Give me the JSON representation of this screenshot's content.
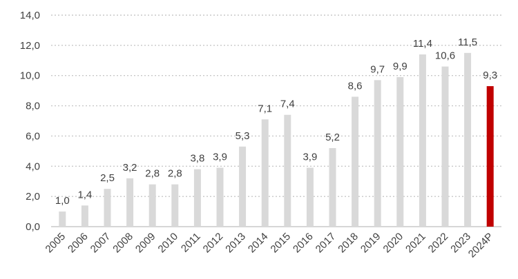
{
  "chart_data": {
    "type": "bar",
    "title": "",
    "xlabel": "",
    "ylabel": "",
    "categories": [
      "2005",
      "2006",
      "2007",
      "2008",
      "2009",
      "2010",
      "2011",
      "2012",
      "2013",
      "2014",
      "2015",
      "2016",
      "2017",
      "2018",
      "2019",
      "2020",
      "2021",
      "2022",
      "2023",
      "2024P"
    ],
    "values": [
      1.0,
      1.4,
      2.5,
      3.2,
      2.8,
      2.8,
      3.8,
      3.9,
      5.3,
      7.1,
      7.4,
      3.9,
      5.2,
      8.6,
      9.7,
      9.9,
      11.4,
      10.6,
      11.5,
      9.3
    ],
    "value_labels": [
      "1,0",
      "1,4",
      "2,5",
      "3,2",
      "2,8",
      "2,8",
      "3,8",
      "3,9",
      "5,3",
      "7,1",
      "7,4",
      "3,9",
      "5,2",
      "8,6",
      "9,7",
      "9,9",
      "11,4",
      "10,6",
      "11,5",
      "9,3"
    ],
    "ylim": [
      0,
      14
    ],
    "yticks": [
      0,
      2,
      4,
      6,
      8,
      10,
      12,
      14
    ],
    "ytick_labels": [
      "0,0",
      "2,0",
      "4,0",
      "6,0",
      "8,0",
      "10,0",
      "12,0",
      "14,0"
    ],
    "grid": true,
    "legend": "none",
    "colors": {
      "default_bar": "#d9d9d9",
      "highlight_bar": "#c00000",
      "grid": "#c8c8c8",
      "text": "#404040"
    },
    "highlight_category": "2024P"
  }
}
